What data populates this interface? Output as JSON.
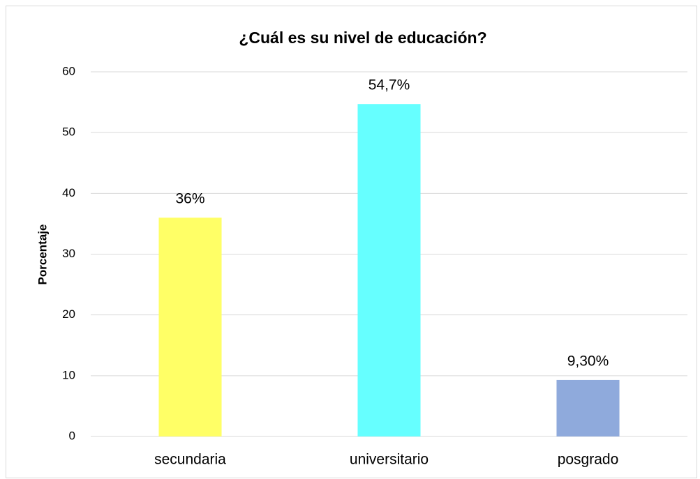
{
  "chart_data": {
    "type": "bar",
    "title": "¿Cuál es su nivel de educación?",
    "y_label": "Porcentaje",
    "categories": [
      "secundaria",
      "universitario",
      "posgrado"
    ],
    "values": [
      36,
      54.7,
      9.3
    ],
    "value_labels": [
      "36%",
      "54,7%",
      "9,30%"
    ],
    "colors": [
      "#FFFF66",
      "#66FFFF",
      "#8FAADC"
    ],
    "ylim": [
      0,
      60
    ],
    "yticks": [
      0,
      10,
      20,
      30,
      40,
      50,
      60
    ],
    "grid": true
  }
}
